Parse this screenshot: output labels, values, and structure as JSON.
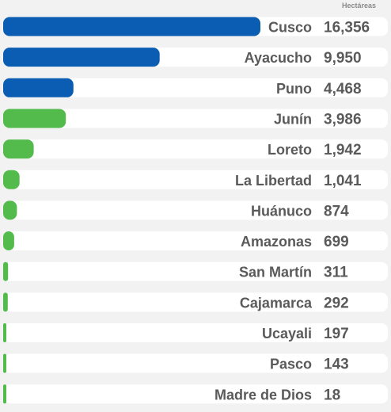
{
  "chart_data": {
    "type": "bar",
    "orientation": "horizontal",
    "unit_label": "Hectáreas",
    "categories": [
      "Cusco",
      "Ayacucho",
      "Puno",
      "Junín",
      "Loreto",
      "La Libertad",
      "Huánuco",
      "Amazonas",
      "San Martín",
      "Cajamarca",
      "Ucayali",
      "Pasco",
      "Madre de Dios"
    ],
    "values": [
      16356,
      9950,
      4468,
      3986,
      1942,
      1041,
      874,
      699,
      311,
      292,
      197,
      143,
      18
    ],
    "value_labels": [
      "16,356",
      "9,950",
      "4,468",
      "3,986",
      "1,942",
      "1,041",
      "874",
      "699",
      "311",
      "292",
      "197",
      "143",
      "18"
    ],
    "bar_colors": [
      "#0b5db3",
      "#0b5db3",
      "#0b5db3",
      "#52bb4b",
      "#52bb4b",
      "#52bb4b",
      "#52bb4b",
      "#52bb4b",
      "#52bb4b",
      "#52bb4b",
      "#52bb4b",
      "#52bb4b",
      "#52bb4b"
    ],
    "track_color": "#ffffff",
    "background_color": "#f2f2f2",
    "xlim": [
      0,
      16356
    ],
    "legend": "none",
    "grid": false
  }
}
